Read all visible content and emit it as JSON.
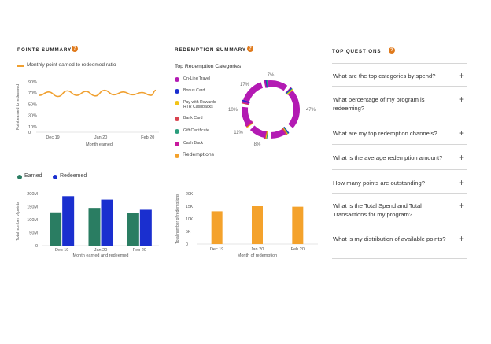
{
  "points_summary": {
    "title": "POINTS SUMMARY",
    "help_icon": "?",
    "line_chart": {
      "type": "line",
      "legend": "Monthly point earned to redeemed ratio",
      "color": "#f0a030",
      "y_ticks": [
        "90%",
        "70%",
        "50%",
        "30%",
        "10%",
        "0"
      ],
      "ylim": [
        0,
        90
      ],
      "x_ticks": [
        "Dec 19",
        "Jan 20",
        "Feb 20"
      ],
      "xlabel": "Month earned",
      "ylabel": "Point earned to redeemed",
      "x": [
        0,
        0.08,
        0.16,
        0.24,
        0.32,
        0.4,
        0.48,
        0.56,
        0.64,
        0.72,
        0.8,
        0.88,
        0.96,
        1.0
      ],
      "values": [
        66,
        72,
        64,
        74,
        66,
        73,
        65,
        75,
        67,
        72,
        67,
        71,
        66,
        75
      ]
    },
    "bar_chart": {
      "type": "bar",
      "legend": [
        {
          "name": "Earned",
          "color": "#2a7d62"
        },
        {
          "name": "Redeemed",
          "color": "#1a2fcf"
        }
      ],
      "categories": [
        "Dec 19",
        "Jan 20",
        "Feb 20"
      ],
      "series": [
        {
          "name": "Earned",
          "values": [
            128,
            145,
            125
          ]
        },
        {
          "name": "Redeemed",
          "values": [
            190,
            177,
            138
          ]
        }
      ],
      "y_ticks": [
        "200M",
        "150M",
        "100M",
        "50M",
        "0"
      ],
      "ylim": [
        0,
        200
      ],
      "xlabel": "Month earned and redeemed",
      "ylabel": "Total number of points"
    }
  },
  "redemption_summary": {
    "title": "REDEMPTION SUMMARY",
    "help_icon": "?",
    "donut_title": "Top Redemption Categories",
    "categories": [
      {
        "label": "On-Line Travel",
        "color": "#b31ab3"
      },
      {
        "label": "Bonus Card",
        "color": "#1a2fcf"
      },
      {
        "label": "Pay with Rewards\nRTR Cashbacks",
        "color": "#f2c418"
      },
      {
        "label": "Bank Card",
        "color": "#d9434f"
      },
      {
        "label": "Gift Certificate",
        "color": "#2a9d7c"
      },
      {
        "label": "Cash Back",
        "color": "#c8189e"
      }
    ],
    "redemptions_legend": {
      "label": "Redemptions",
      "color": "#f4a22c"
    },
    "donut_labels": [
      "7%",
      "47%",
      "8%",
      "11%",
      "10%",
      "17%"
    ],
    "donut": {
      "type": "pie",
      "values": [
        7,
        47,
        8,
        11,
        10,
        17
      ]
    },
    "bar_chart": {
      "type": "bar",
      "categories": [
        "Dec 19",
        "Jan 20",
        "Feb 20"
      ],
      "values": [
        13,
        15,
        14.8
      ],
      "color": "#f4a22c",
      "y_ticks": [
        "20K",
        "15K",
        "10K",
        "5K",
        "0"
      ],
      "ylim": [
        0,
        20
      ],
      "xlabel": "Month of redemption",
      "ylabel": "Total number of redemptions"
    }
  },
  "top_questions": {
    "title": "TOP QUESTIONS",
    "help_icon": "?",
    "plus_icon": "+",
    "items": [
      "What are the top categories by spend?",
      "What percentage of my program is redeeming?",
      "What are my top redemption channels?",
      "What is the average redemption amount?",
      "How many points are outstanding?",
      "What is the Total Spend and Total Transactions for my program?",
      "What is my distribution of available points?"
    ]
  }
}
